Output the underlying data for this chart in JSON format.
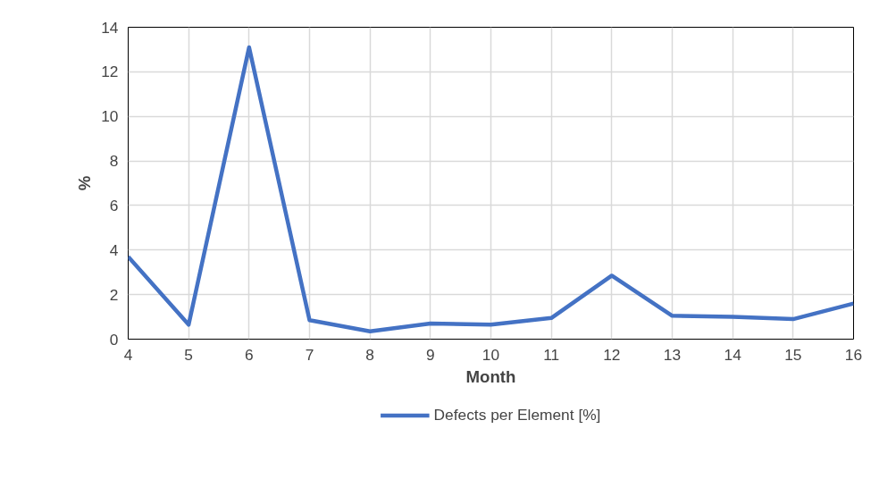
{
  "chart_data": {
    "type": "line",
    "xlabel": "Month",
    "ylabel": "%",
    "x": [
      4,
      5,
      6,
      7,
      8,
      9,
      10,
      11,
      12,
      13,
      14,
      15,
      16
    ],
    "series": [
      {
        "name": "Defects per Element [%]",
        "color": "#4472c4",
        "values": [
          3.7,
          0.65,
          13.1,
          0.85,
          0.35,
          0.7,
          0.65,
          0.95,
          2.85,
          1.05,
          1.0,
          0.9,
          1.6
        ]
      }
    ],
    "xlim": [
      4,
      16
    ],
    "xticks": [
      4,
      5,
      6,
      7,
      8,
      9,
      10,
      11,
      12,
      13,
      14,
      15,
      16
    ],
    "ylim": [
      0,
      14
    ],
    "yticks": [
      0,
      2,
      4,
      6,
      8,
      10,
      12,
      14
    ],
    "grid": true,
    "legend": "bottom",
    "marker": "none",
    "line_style": "solid"
  }
}
